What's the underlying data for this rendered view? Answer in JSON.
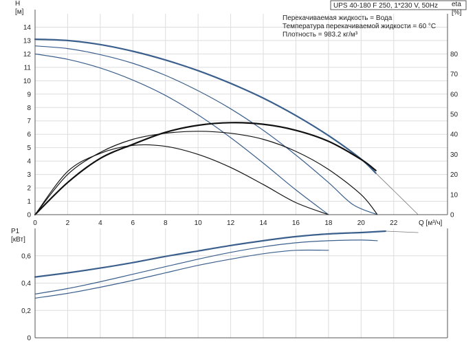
{
  "title": "UPS 40-180 F 250, 1*230 V, 50Hz",
  "conditions": [
    "Перекачиваемая жидкость = Вода",
    "Температура перекачиваемой жидкости = 60 °C",
    "Плотность = 983.2 кг/м³"
  ],
  "colors": {
    "head": "#3b5f8c",
    "eff": "#111111",
    "power": "#3b5f8c",
    "grid": "#dddddd",
    "axis": "#555555",
    "thin": "#777777"
  },
  "chart_data": [
    {
      "type": "line",
      "name": "head-efficiency",
      "title": "UPS 40-180 F 250, 1*230 V, 50Hz",
      "xlabel": "Q [м³/ч]",
      "ylabel": "H [м]",
      "ylabel_right": "eta [%]",
      "xlim": [
        0,
        25.3
      ],
      "ylim": [
        0,
        15
      ],
      "ylim_right": [
        0,
        100
      ],
      "x_ticks": [
        0,
        2,
        4,
        6,
        8,
        10,
        12,
        14,
        16,
        18,
        20,
        22
      ],
      "y_ticks": [
        0,
        1,
        2,
        3,
        4,
        5,
        6,
        7,
        8,
        9,
        10,
        11,
        12,
        13,
        14
      ],
      "y_right_ticks": [
        0,
        10,
        20,
        30,
        40,
        50,
        60,
        70,
        80
      ],
      "grid": true,
      "series": [
        {
          "axis": "left",
          "style": "bold",
          "x": [
            0,
            2,
            4,
            6,
            8,
            10,
            12,
            14,
            16,
            18,
            20,
            20.9
          ],
          "y": [
            13.1,
            13.0,
            12.7,
            12.2,
            11.55,
            10.75,
            9.8,
            8.7,
            7.4,
            5.9,
            4.15,
            3.1
          ]
        },
        {
          "axis": "left",
          "style": "thin",
          "x": [
            20.9,
            22,
            23.5
          ],
          "y": [
            3.1,
            1.8,
            0
          ]
        },
        {
          "axis": "left",
          "style": "normal",
          "x": [
            0,
            2,
            4,
            6,
            8,
            10,
            12,
            14,
            16,
            18,
            19.5,
            21
          ],
          "y": [
            12.6,
            12.4,
            11.95,
            11.3,
            10.4,
            9.25,
            7.9,
            6.3,
            4.45,
            2.4,
            0.75,
            0
          ]
        },
        {
          "axis": "left",
          "style": "normal",
          "x": [
            0,
            2,
            4,
            6,
            8,
            10,
            12,
            14,
            16,
            18
          ],
          "y": [
            12.0,
            11.6,
            10.95,
            10.05,
            8.9,
            7.45,
            5.75,
            3.85,
            1.85,
            0
          ]
        },
        {
          "axis": "right",
          "style": "bold",
          "x": [
            0,
            2,
            4,
            6,
            8,
            10,
            12,
            14,
            16,
            18,
            20,
            20.9
          ],
          "y": [
            0,
            16,
            28,
            35,
            41,
            44.5,
            45.8,
            45,
            42,
            36.5,
            27.5,
            22
          ]
        },
        {
          "axis": "right",
          "style": "normal",
          "x": [
            0,
            2,
            4,
            6,
            8,
            10,
            12,
            14,
            16,
            18,
            20,
            21
          ],
          "y": [
            0,
            20,
            31,
            37.5,
            40.5,
            41.5,
            40.5,
            37.5,
            31.5,
            22.5,
            10,
            0
          ]
        },
        {
          "axis": "right",
          "style": "normal",
          "x": [
            0,
            2,
            4,
            6,
            8,
            10,
            12,
            14,
            16,
            18
          ],
          "y": [
            0,
            21.5,
            30.5,
            34.5,
            34,
            30,
            23.5,
            15,
            6,
            0
          ]
        }
      ]
    },
    {
      "type": "line",
      "name": "power",
      "ylabel": "P1 [кВт]",
      "xlim": [
        0,
        25.3
      ],
      "ylim": [
        0,
        0.8
      ],
      "y_ticks": [
        0,
        0.2,
        0.4,
        0.6
      ],
      "y_tick_labels": [
        "0",
        "0,2",
        "0,4",
        "0,6"
      ],
      "grid": true,
      "series": [
        {
          "style": "bold",
          "x": [
            0,
            2,
            4,
            6,
            8,
            10,
            12,
            14,
            16,
            18,
            20,
            21.5
          ],
          "y": [
            0.445,
            0.475,
            0.51,
            0.55,
            0.595,
            0.635,
            0.675,
            0.71,
            0.74,
            0.76,
            0.77,
            0.78
          ]
        },
        {
          "style": "thin",
          "x": [
            21.5,
            23.5
          ],
          "y": [
            0.78,
            0.77
          ]
        },
        {
          "style": "normal",
          "x": [
            0,
            2,
            4,
            6,
            8,
            10,
            12,
            14,
            16,
            18,
            20,
            21
          ],
          "y": [
            0.32,
            0.36,
            0.41,
            0.465,
            0.52,
            0.575,
            0.625,
            0.665,
            0.695,
            0.71,
            0.715,
            0.71
          ]
        },
        {
          "style": "normal",
          "x": [
            0,
            2,
            4,
            6,
            8,
            10,
            12,
            14,
            16,
            18
          ],
          "y": [
            0.29,
            0.325,
            0.37,
            0.42,
            0.475,
            0.53,
            0.575,
            0.615,
            0.64,
            0.64
          ]
        }
      ]
    }
  ]
}
